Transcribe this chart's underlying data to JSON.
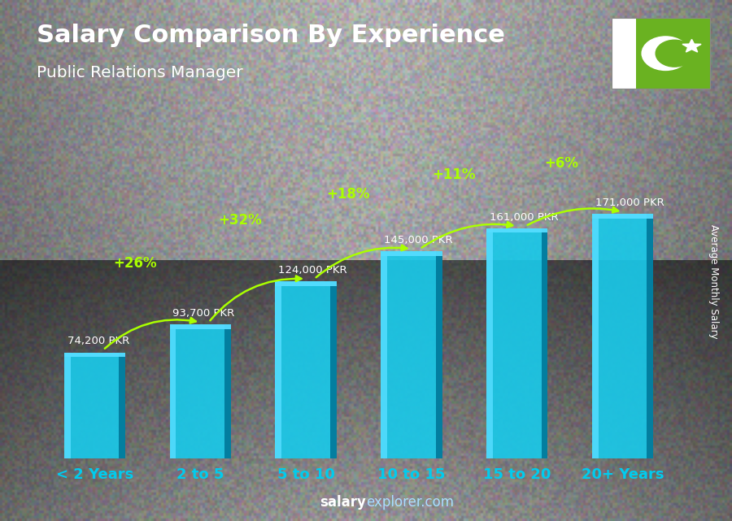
{
  "title": "Salary Comparison By Experience",
  "subtitle": "Public Relations Manager",
  "ylabel": "Average Monthly Salary",
  "watermark_bold": "salary",
  "watermark_normal": "explorer.com",
  "categories": [
    "< 2 Years",
    "2 to 5",
    "5 to 10",
    "10 to 15",
    "15 to 20",
    "20+ Years"
  ],
  "values": [
    74200,
    93700,
    124000,
    145000,
    161000,
    171000
  ],
  "labels": [
    "74,200 PKR",
    "93,700 PKR",
    "124,000 PKR",
    "145,000 PKR",
    "161,000 PKR",
    "171,000 PKR"
  ],
  "pct_labels": [
    "+26%",
    "+32%",
    "+18%",
    "+11%",
    "+6%"
  ],
  "bar_color_main": "#1ac8e8",
  "bar_color_light": "#55ddff",
  "bar_color_dark": "#0088aa",
  "bar_color_side": "#007799",
  "bg_light": "#b0b0b0",
  "bg_dark": "#606060",
  "title_color": "#ffffff",
  "subtitle_color": "#ffffff",
  "label_color": "#ffffff",
  "pct_color": "#aaff00",
  "xtick_color": "#00ccee",
  "watermark_bold_color": "#ffffff",
  "watermark_normal_color": "#aaddff",
  "flag_green": "#6ab221",
  "figsize": [
    9.0,
    6.41
  ],
  "dpi": 100
}
